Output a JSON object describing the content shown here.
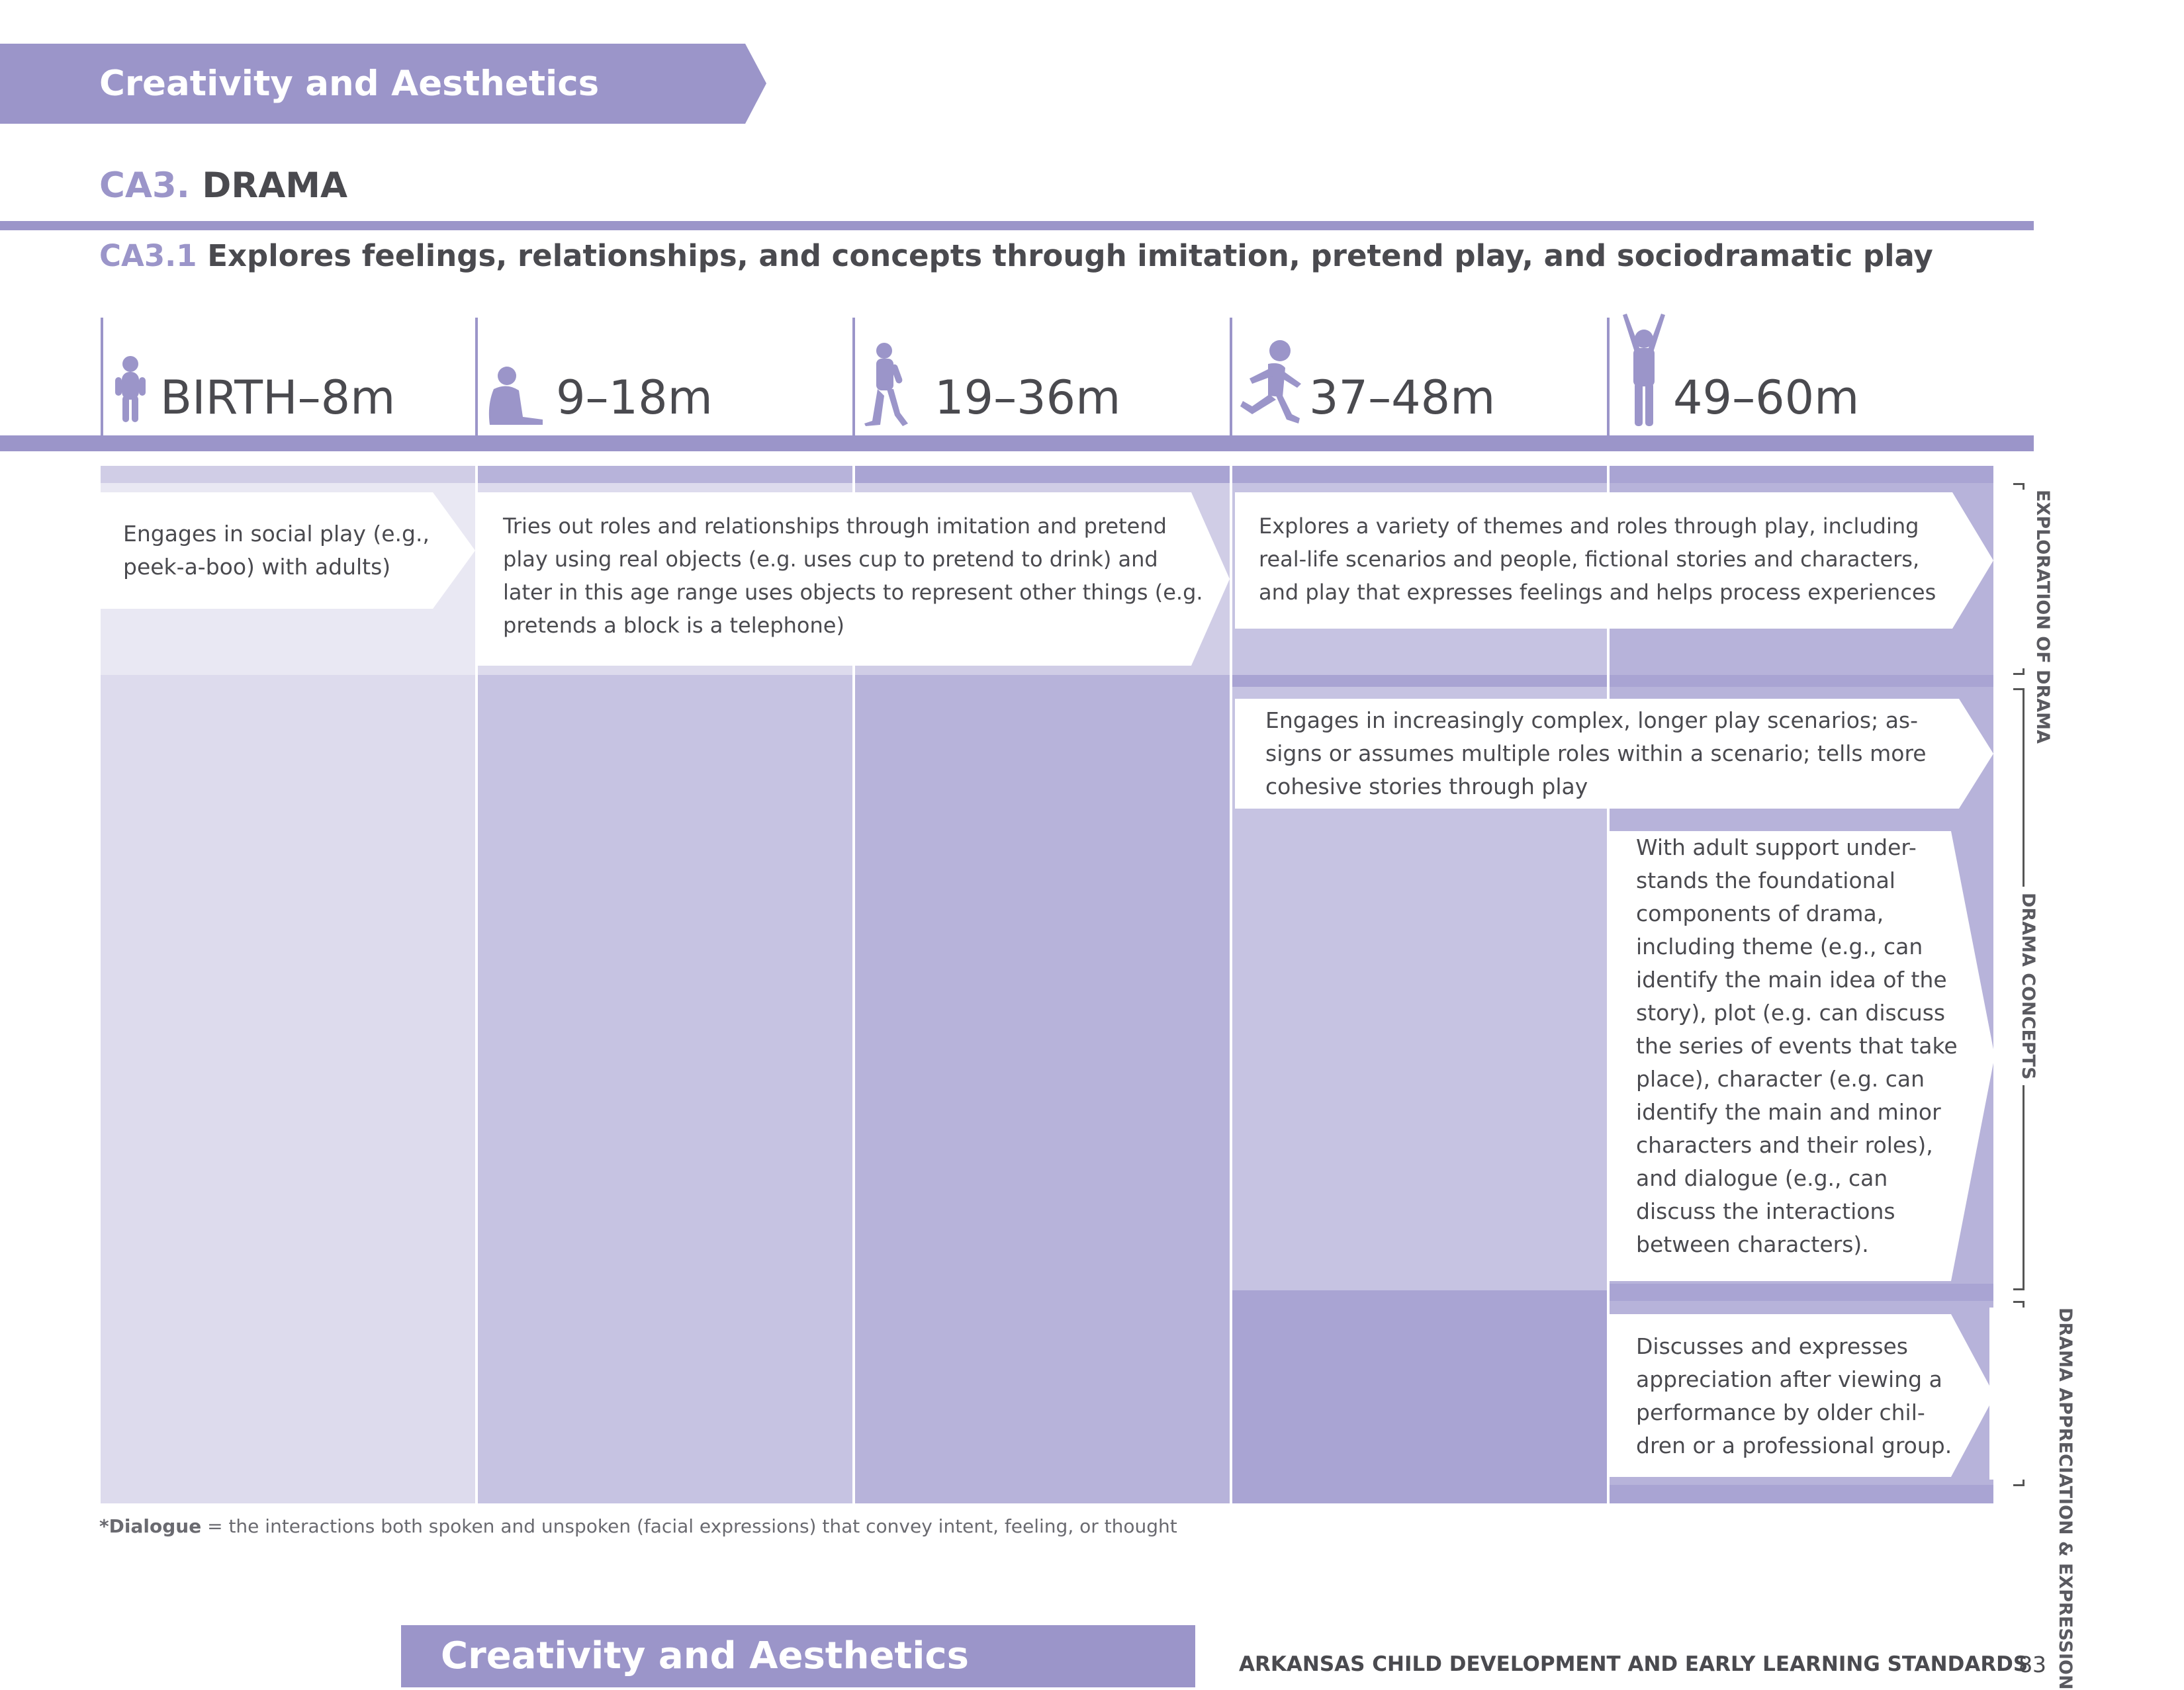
{
  "banner": {
    "title": "Creativity and Aesthetics"
  },
  "standard": {
    "code": "CA3.",
    "name": "DRAMA"
  },
  "indicator": {
    "code": "CA3.1",
    "text": "Explores feelings, relationships, and concepts through imitation, pretend play, and sociodramatic play"
  },
  "age_groups": [
    {
      "label": "BIRTH–8m",
      "icon": "infant-icon"
    },
    {
      "label": "9–18m",
      "icon": "sitting-baby-icon"
    },
    {
      "label": "19–36m",
      "icon": "toddler-walking-icon"
    },
    {
      "label": "37–48m",
      "icon": "running-child-icon"
    },
    {
      "label": "49–60m",
      "icon": "child-arms-up-icon"
    }
  ],
  "strands": [
    {
      "label": "EXPLORATION OF DRAMA",
      "items": [
        {
          "ages": "BIRTH–8m",
          "text": "Engages in social play (e.g., peek-a-boo) with adults)"
        },
        {
          "ages": "9–36m",
          "text": "Tries out roles and relationships through imitation and pretend play using real objects (e.g. uses cup to pretend to drink) and later in this age range uses objects to represent other things (e.g.  pretends a block is a telephone)"
        },
        {
          "ages": "37–60m",
          "text": "Explores a variety of themes and roles through play, including real-life scenarios and people, fictional stories and characters, and play that expresses feelings and helps process experiences"
        }
      ]
    },
    {
      "label": "DRAMA CONCEPTS",
      "items": [
        {
          "ages": "37–60m",
          "text": "Engages in increasingly complex, longer play scenarios; as-signs or assumes multiple roles within a scenario; tells more cohesive stories through play"
        },
        {
          "ages": "49–60m",
          "text": "With adult support under-stands the foundational components of drama, including theme (e.g., can identify the main idea of the story), plot (e.g. can discuss the series of events that take place), character (e.g. can identify the main and minor characters and their roles), and dialogue (e.g., can discuss the interactions between characters)."
        }
      ]
    },
    {
      "label": "DRAMA APPRECIATION & EXPRESSION",
      "items": [
        {
          "ages": "49–60m",
          "text": "Discusses and expresses appreciation after viewing a performance by older chil-dren or a professional group."
        }
      ]
    }
  ],
  "footnote": {
    "term": "*Dialogue",
    "definition": " = the interactions both spoken and unspoken (facial expressions) that convey intent, feeling, or thought"
  },
  "footer": {
    "section": "Creativity and Aesthetics",
    "publication": "ARKANSAS CHILD DEVELOPMENT AND EARLY LEARNING STANDARDS",
    "page": "83"
  },
  "colors": {
    "accent": "#9b95c9",
    "col1": "#dddbed",
    "col2": "#c6c3e2",
    "col3": "#b7b3da",
    "col4": "#c6c3e2",
    "col5": "#b7b3da",
    "text": "#4a4a4f"
  }
}
